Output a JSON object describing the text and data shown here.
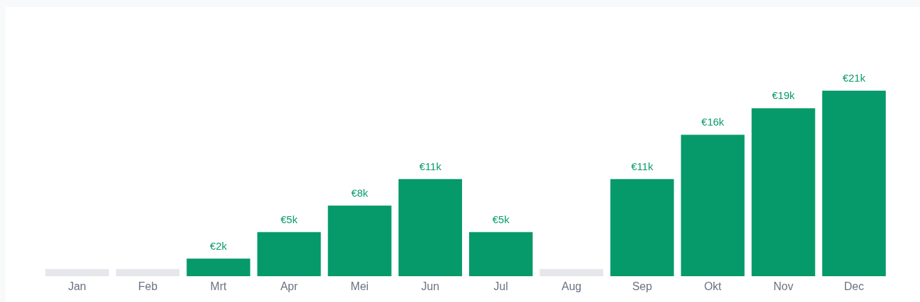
{
  "chart_data": {
    "type": "bar",
    "categories": [
      "Jan",
      "Feb",
      "Mrt",
      "Apr",
      "Mei",
      "Jun",
      "Jul",
      "Aug",
      "Sep",
      "Okt",
      "Nov",
      "Dec"
    ],
    "values": [
      0.8,
      0.8,
      2,
      5,
      8,
      11,
      5,
      0.8,
      11,
      16,
      19,
      21
    ],
    "colors": [
      "#e5e7eb",
      "#e5e7eb",
      "#069a6b",
      "#069a6b",
      "#069a6b",
      "#069a6b",
      "#069a6b",
      "#e5e7eb",
      "#069a6b",
      "#069a6b",
      "#069a6b",
      "#069a6b"
    ],
    "value_labels": [
      null,
      null,
      "€2k",
      "€5k",
      "€8k",
      "€11k",
      "€5k",
      null,
      "€11k",
      "€16k",
      "€19k",
      "€21k"
    ],
    "grid": false
  }
}
